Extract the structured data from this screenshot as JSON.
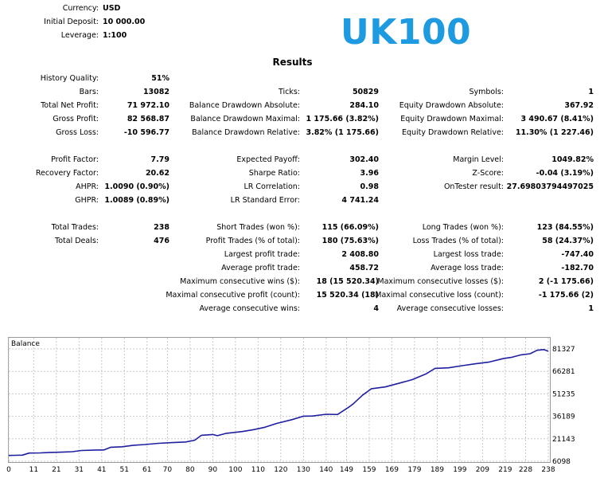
{
  "header": {
    "currency_label": "Currency:",
    "currency_value": "USD",
    "deposit_label": "Initial Deposit:",
    "deposit_value": "10 000.00",
    "leverage_label": "Leverage:",
    "leverage_value": "1:100",
    "symbol_title": "UK100",
    "symbol_color": "#1e9ae0"
  },
  "results_title": "Results",
  "col1": {
    "history_quality": {
      "label": "History Quality:",
      "value": "51%"
    },
    "bars": {
      "label": "Bars:",
      "value": "13082"
    },
    "net_profit": {
      "label": "Total Net Profit:",
      "value": "71 972.10"
    },
    "gross_profit": {
      "label": "Gross Profit:",
      "value": "82 568.87"
    },
    "gross_loss": {
      "label": "Gross Loss:",
      "value": "-10 596.77"
    },
    "profit_factor": {
      "label": "Profit Factor:",
      "value": "7.79"
    },
    "recovery_factor": {
      "label": "Recovery Factor:",
      "value": "20.62"
    },
    "ahpr": {
      "label": "AHPR:",
      "value": "1.0090 (0.90%)"
    },
    "ghpr": {
      "label": "GHPR:",
      "value": "1.0089 (0.89%)"
    },
    "total_trades": {
      "label": "Total Trades:",
      "value": "238"
    },
    "total_deals": {
      "label": "Total Deals:",
      "value": "476"
    }
  },
  "col2": {
    "ticks": {
      "label": "Ticks:",
      "value": "50829"
    },
    "bal_dd_abs": {
      "label": "Balance Drawdown Absolute:",
      "value": "284.10"
    },
    "bal_dd_max": {
      "label": "Balance Drawdown Maximal:",
      "value": "1 175.66 (3.82%)"
    },
    "bal_dd_rel": {
      "label": "Balance Drawdown Relative:",
      "value": "3.82% (1 175.66)"
    },
    "expected_payoff": {
      "label": "Expected Payoff:",
      "value": "302.40"
    },
    "sharpe": {
      "label": "Sharpe Ratio:",
      "value": "3.96"
    },
    "lr_corr": {
      "label": "LR Correlation:",
      "value": "0.98"
    },
    "lr_err": {
      "label": "LR Standard Error:",
      "value": "4 741.24"
    },
    "short_trades": {
      "label": "Short Trades (won %):",
      "value": "115 (66.09%)"
    },
    "profit_trades": {
      "label": "Profit Trades (% of total):",
      "value": "180 (75.63%)"
    },
    "largest_profit": {
      "label": "Largest profit trade:",
      "value": "2 408.80"
    },
    "avg_profit": {
      "label": "Average profit trade:",
      "value": "458.72"
    },
    "max_consec_wins": {
      "label": "Maximum consecutive wins ($):",
      "value": "18 (15 520.34)"
    },
    "maximal_consec_profit": {
      "label": "Maximal consecutive profit (count):",
      "value": "15 520.34 (18)"
    },
    "avg_consec_wins": {
      "label": "Average consecutive wins:",
      "value": "4"
    }
  },
  "col3": {
    "symbols": {
      "label": "Symbols:",
      "value": "1"
    },
    "eq_dd_abs": {
      "label": "Equity Drawdown Absolute:",
      "value": "367.92"
    },
    "eq_dd_max": {
      "label": "Equity Drawdown Maximal:",
      "value": "3 490.67 (8.41%)"
    },
    "eq_dd_rel": {
      "label": "Equity Drawdown Relative:",
      "value": "11.30% (1 227.46)"
    },
    "margin_level": {
      "label": "Margin Level:",
      "value": "1049.82%"
    },
    "z_score": {
      "label": "Z-Score:",
      "value": "-0.04 (3.19%)"
    },
    "ontester": {
      "label": "OnTester result:",
      "value": "27.69803794497025"
    },
    "long_trades": {
      "label": "Long Trades (won %):",
      "value": "123 (84.55%)"
    },
    "loss_trades": {
      "label": "Loss Trades (% of total):",
      "value": "58 (24.37%)"
    },
    "largest_loss": {
      "label": "Largest loss trade:",
      "value": "-747.40"
    },
    "avg_loss": {
      "label": "Average loss trade:",
      "value": "-182.70"
    },
    "max_consec_losses": {
      "label": "Maximum consecutive losses ($):",
      "value": "2 (-1 175.66)"
    },
    "maximal_consec_loss": {
      "label": "Maximal consecutive loss (count):",
      "value": "-1 175.66 (2)"
    },
    "avg_consec_losses": {
      "label": "Average consecutive losses:",
      "value": "1"
    }
  },
  "chart_data": {
    "type": "line",
    "title": "Balance",
    "line_color": "#1f1fa0",
    "grid": true,
    "grid_style": "dashed",
    "ylim": [
      6098,
      81327
    ],
    "y_ticks": [
      "81327",
      "66281",
      "51235",
      "36189",
      "21143",
      "6098"
    ],
    "x_ticks": [
      "0",
      "11",
      "21",
      "31",
      "41",
      "51",
      "61",
      "70",
      "80",
      "90",
      "100",
      "110",
      "120",
      "130",
      "140",
      "149",
      "159",
      "169",
      "179",
      "189",
      "199",
      "209",
      "219",
      "228",
      "238"
    ],
    "xlim": [
      0,
      238
    ],
    "series": [
      {
        "values": [
          [
            0,
            10000
          ],
          [
            3,
            10100
          ],
          [
            6,
            10200
          ],
          [
            9,
            11600
          ],
          [
            14,
            11700
          ],
          [
            18,
            12000
          ],
          [
            23,
            12200
          ],
          [
            28,
            12500
          ],
          [
            32,
            13300
          ],
          [
            38,
            13600
          ],
          [
            42,
            13700
          ],
          [
            45,
            15500
          ],
          [
            50,
            15800
          ],
          [
            55,
            16800
          ],
          [
            60,
            17300
          ],
          [
            66,
            18100
          ],
          [
            72,
            18600
          ],
          [
            78,
            19000
          ],
          [
            82,
            20200
          ],
          [
            85,
            23500
          ],
          [
            90,
            24000
          ],
          [
            92,
            23200
          ],
          [
            96,
            24800
          ],
          [
            103,
            26000
          ],
          [
            108,
            27300
          ],
          [
            113,
            28900
          ],
          [
            118,
            31400
          ],
          [
            125,
            34000
          ],
          [
            130,
            36300
          ],
          [
            134,
            36400
          ],
          [
            140,
            37600
          ],
          [
            145,
            37400
          ],
          [
            150,
            42300
          ],
          [
            152,
            44600
          ],
          [
            156,
            50300
          ],
          [
            160,
            54700
          ],
          [
            166,
            55900
          ],
          [
            172,
            58300
          ],
          [
            178,
            60800
          ],
          [
            184,
            64600
          ],
          [
            188,
            68300
          ],
          [
            194,
            68700
          ],
          [
            200,
            70100
          ],
          [
            206,
            71400
          ],
          [
            212,
            72600
          ],
          [
            218,
            74800
          ],
          [
            222,
            75800
          ],
          [
            226,
            77400
          ],
          [
            230,
            78100
          ],
          [
            233,
            80400
          ],
          [
            236,
            80900
          ],
          [
            238,
            79800
          ]
        ]
      }
    ]
  }
}
